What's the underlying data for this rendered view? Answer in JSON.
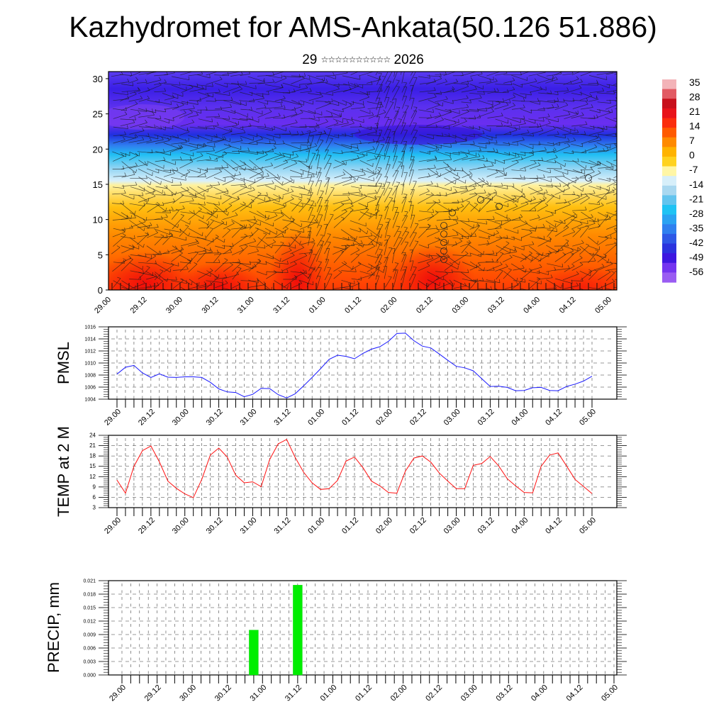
{
  "header": {
    "title": "Kazhydromet for AMS-Ankata(50.126 51.886)",
    "subtitle_day": "29",
    "subtitle_month_glyphs": "☆☆☆☆☆☆☆☆☆☆",
    "subtitle_year": "2026"
  },
  "time_labels": [
    "29.00",
    "29.12",
    "30.00",
    "30.12",
    "31.00",
    "31.12",
    "01.00",
    "01.12",
    "02.00",
    "02.12",
    "03.00",
    "03.12",
    "04.00",
    "04.12",
    "05.00"
  ],
  "chart_data": [
    {
      "type": "heatmap",
      "title": "Temperature cross-section with wind vectors",
      "xlabel": "",
      "ylabel": "",
      "x_tick_labels": [
        "29.00",
        "29.12",
        "30.00",
        "30.12",
        "31.00",
        "31.12",
        "01.00",
        "01.12",
        "02.00",
        "02.12",
        "03.00",
        "03.12",
        "04.00",
        "04.12",
        "05.00"
      ],
      "y_ticks": [
        0,
        5,
        10,
        15,
        20,
        25,
        30
      ],
      "ylim": [
        0,
        31
      ],
      "colorbar": {
        "labels": [
          "35",
          "28",
          "21",
          "14",
          "7",
          "0",
          "-7",
          "-14",
          "-21",
          "-28",
          "-35",
          "-42",
          "-49",
          "-56"
        ],
        "colors": [
          "#f3b3b8",
          "#e25a63",
          "#c8101c",
          "#e8131a",
          "#fb2d0d",
          "#ff5a00",
          "#ff8a00",
          "#ffb300",
          "#ffd21f",
          "#fff6a6",
          "#d7effa",
          "#a9d8f0",
          "#63c4ee",
          "#1fc3f4",
          "#2aa3f2",
          "#2f80ef",
          "#2e58e6",
          "#2b33de",
          "#3d16e0",
          "#7434f0",
          "#9a5cf2"
        ]
      },
      "grid": false
    },
    {
      "type": "line",
      "title": "",
      "xlabel": "",
      "ylabel": "PMSL",
      "ylim": [
        1004,
        1016
      ],
      "y_ticks": [
        "1004",
        "1006",
        "1008",
        "1010",
        "1012",
        "1014",
        "1016"
      ],
      "x_step_hours": 3,
      "color": "#1a1aff",
      "grid": true,
      "values": [
        1008.15,
        1009.3,
        1009.6,
        1008.35,
        1007.6,
        1008.2,
        1007.65,
        1007.6,
        1007.7,
        1007.7,
        1007.6,
        1006.8,
        1005.7,
        1005.2,
        1005.1,
        1004.4,
        1004.8,
        1005.8,
        1005.75,
        1004.75,
        1004.2,
        1004.9,
        1006.2,
        1007.6,
        1009.05,
        1010.6,
        1011.3,
        1011.1,
        1010.7,
        1011.6,
        1012.3,
        1012.7,
        1013.6,
        1014.9,
        1014.95,
        1013.7,
        1012.8,
        1012.5,
        1011.5,
        1010.45,
        1009.45,
        1009.2,
        1008.7,
        1007.4,
        1006.1,
        1006.15,
        1005.95,
        1005.4,
        1005.45,
        1005.9,
        1005.95,
        1005.45,
        1005.4,
        1006.1,
        1006.5,
        1007.0,
        1007.8
      ]
    },
    {
      "type": "line",
      "title": "",
      "xlabel": "",
      "ylabel": "TEMP at 2 M",
      "ylim": [
        3,
        24
      ],
      "y_ticks": [
        "3",
        "6",
        "9",
        "12",
        "15",
        "18",
        "21",
        "24"
      ],
      "x_step_hours": 3,
      "color": "#ff1010",
      "grid": true,
      "values": [
        11.0,
        7.2,
        15.0,
        19.55,
        20.9,
        16.3,
        10.7,
        8.6,
        7.0,
        5.9,
        11.2,
        18.25,
        20.3,
        17.7,
        12.4,
        10.2,
        10.5,
        9.1,
        17.0,
        21.5,
        22.8,
        17.6,
        13.3,
        10.2,
        8.3,
        8.5,
        10.9,
        16.5,
        17.7,
        14.6,
        10.7,
        9.3,
        7.4,
        7.2,
        13.6,
        17.4,
        18.0,
        16.2,
        13.05,
        10.7,
        8.5,
        8.5,
        15.3,
        15.8,
        17.85,
        15.1,
        11.4,
        9.3,
        7.4,
        7.3,
        15.0,
        18.25,
        18.9,
        15.1,
        11.2,
        9.15,
        7.1
      ]
    },
    {
      "type": "bar",
      "title": "",
      "xlabel": "",
      "ylabel": "PRECIP, mm",
      "ylim": [
        0,
        0.021
      ],
      "y_ticks": [
        "0.000",
        "0.003",
        "0.006",
        "0.009",
        "0.012",
        "0.015",
        "0.018",
        "0.021"
      ],
      "x_step_hours": 3,
      "color": "#00ee00",
      "grid": true,
      "bars": [
        {
          "time": "30.21",
          "step_index": 15,
          "value": 0.01
        },
        {
          "time": "31.12",
          "step_index": 20,
          "value": 0.02
        }
      ]
    }
  ]
}
